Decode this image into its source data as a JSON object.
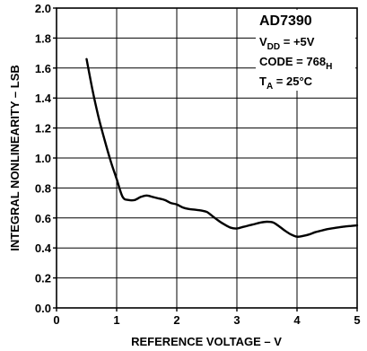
{
  "chart_data": {
    "type": "line",
    "xlabel": "REFERENCE VOLTAGE – V",
    "ylabel": "INTEGRAL NONLINEARITY – LSB",
    "xlim": [
      0,
      5
    ],
    "ylim": [
      0,
      2.0
    ],
    "x_ticks": [
      "0",
      "1",
      "2",
      "3",
      "4",
      "5"
    ],
    "y_ticks": [
      "0.0",
      "0.2",
      "0.4",
      "0.6",
      "0.8",
      "1.0",
      "1.2",
      "1.4",
      "1.6",
      "1.8",
      "2.0"
    ],
    "grid": true,
    "legend_position": "top-right",
    "annotation": {
      "title": "AD7390",
      "lines": [
        {
          "main": "V",
          "sub": "DD",
          "rest": " = +5V"
        },
        {
          "main": "CODE = 768",
          "sub": "H",
          "rest": ""
        },
        {
          "main": "T",
          "sub": "A",
          "rest": " = 25°C"
        }
      ]
    },
    "series": [
      {
        "x": [
          0.5,
          0.6,
          0.7,
          0.8,
          0.9,
          1.0,
          1.1,
          1.2,
          1.3,
          1.4,
          1.5,
          1.6,
          1.7,
          1.8,
          1.9,
          2.0,
          2.1,
          2.2,
          2.3,
          2.4,
          2.5,
          2.6,
          2.7,
          2.8,
          2.9,
          3.0,
          3.1,
          3.2,
          3.3,
          3.4,
          3.5,
          3.6,
          3.7,
          3.8,
          3.9,
          4.0,
          4.1,
          4.2,
          4.3,
          4.4,
          4.5,
          4.6,
          4.7,
          4.8,
          4.9,
          5.0
        ],
        "y": [
          1.66,
          1.45,
          1.27,
          1.12,
          0.98,
          0.86,
          0.74,
          0.72,
          0.72,
          0.74,
          0.75,
          0.74,
          0.73,
          0.72,
          0.7,
          0.69,
          0.67,
          0.66,
          0.655,
          0.65,
          0.64,
          0.61,
          0.58,
          0.555,
          0.535,
          0.53,
          0.54,
          0.55,
          0.56,
          0.57,
          0.575,
          0.57,
          0.545,
          0.515,
          0.49,
          0.475,
          0.48,
          0.49,
          0.505,
          0.515,
          0.525,
          0.532,
          0.538,
          0.543,
          0.547,
          0.55
        ]
      }
    ]
  }
}
